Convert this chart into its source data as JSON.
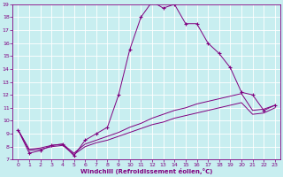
{
  "xlabel": "Windchill (Refroidissement éolien,°C)",
  "bg_color": "#c8eef0",
  "line_color": "#800080",
  "grid_color": "#ffffff",
  "xlim": [
    -0.5,
    23.5
  ],
  "ylim": [
    7,
    19
  ],
  "xticks": [
    0,
    1,
    2,
    3,
    4,
    5,
    6,
    7,
    8,
    9,
    10,
    11,
    12,
    13,
    14,
    15,
    16,
    17,
    18,
    19,
    20,
    21,
    22,
    23
  ],
  "yticks": [
    7,
    8,
    9,
    10,
    11,
    12,
    13,
    14,
    15,
    16,
    17,
    18,
    19
  ],
  "s1x": [
    0,
    1,
    2,
    3,
    4,
    5,
    6,
    7,
    8,
    9,
    10,
    11,
    12,
    13,
    14,
    15,
    16,
    17,
    18,
    19,
    20,
    21,
    22,
    23
  ],
  "s1y": [
    9.3,
    7.5,
    7.7,
    8.1,
    8.2,
    7.3,
    8.5,
    9.0,
    9.5,
    12.0,
    15.5,
    18.0,
    19.2,
    18.7,
    19.0,
    17.5,
    17.5,
    16.0,
    15.2,
    14.1,
    12.2,
    12.0,
    10.8,
    11.2
  ],
  "s2x": [
    0,
    1,
    2,
    3,
    4,
    5,
    6,
    7,
    8,
    9,
    10,
    11,
    12,
    13,
    14,
    15,
    16,
    17,
    18,
    19,
    20,
    21,
    22,
    23
  ],
  "s2y": [
    9.3,
    7.8,
    7.9,
    8.1,
    8.2,
    7.5,
    8.2,
    8.5,
    8.8,
    9.1,
    9.5,
    9.8,
    10.2,
    10.5,
    10.8,
    11.0,
    11.3,
    11.5,
    11.7,
    11.9,
    12.1,
    10.8,
    10.9,
    11.2
  ],
  "s3x": [
    0,
    1,
    2,
    3,
    4,
    5,
    6,
    7,
    8,
    9,
    10,
    11,
    12,
    13,
    14,
    15,
    16,
    17,
    18,
    19,
    20,
    21,
    22,
    23
  ],
  "s3y": [
    9.3,
    7.7,
    7.8,
    8.0,
    8.1,
    7.4,
    8.0,
    8.3,
    8.5,
    8.8,
    9.1,
    9.4,
    9.7,
    9.9,
    10.2,
    10.4,
    10.6,
    10.8,
    11.0,
    11.2,
    11.4,
    10.5,
    10.6,
    11.0
  ]
}
